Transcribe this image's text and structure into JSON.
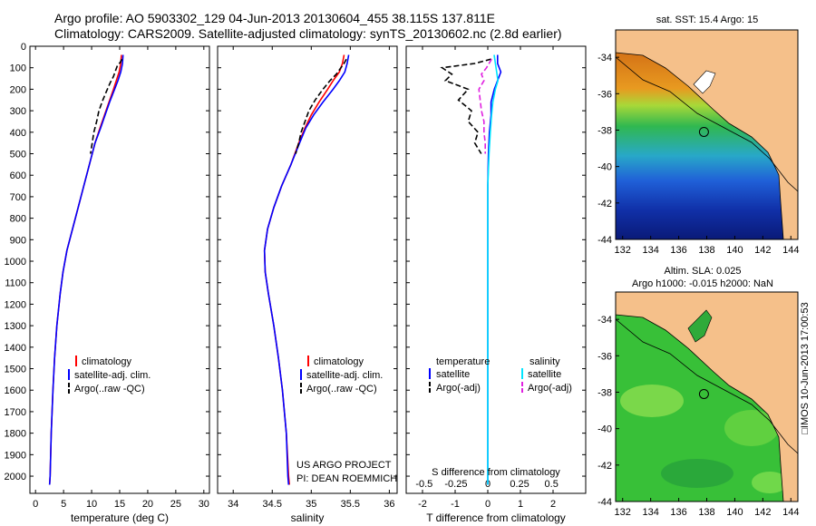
{
  "header": {
    "title_line1": "Argo profile: AO 5903302_129 04-Jun-2013 20130604_455 38.115S 137.811E",
    "title_line2": "Climatology: CARS2009. Satellite-adjusted climatology: synTS_20130602.nc (2.8d earlier)"
  },
  "colors": {
    "climatology": "#ff0000",
    "satellite": "#0000ff",
    "argo": "#000000",
    "salinity_satellite": "#00e5ff",
    "salinity_argo": "#e020e0",
    "land": "#f5c08a"
  },
  "chart_data": [
    {
      "id": "temperature",
      "type": "line",
      "xlabel": "temperature (deg C)",
      "xlim": [
        -1,
        31
      ],
      "xticks": [
        0,
        5,
        10,
        15,
        20,
        25,
        30
      ],
      "xtick_labels": [
        "0",
        "5",
        "10",
        "15",
        "20",
        "25",
        "30"
      ],
      "ylim": [
        2080,
        0
      ],
      "yticks": [
        0,
        100,
        200,
        300,
        400,
        500,
        600,
        700,
        800,
        900,
        1000,
        1100,
        1200,
        1300,
        1400,
        1500,
        1600,
        1700,
        1800,
        1900,
        2000
      ],
      "ytick_labels": [
        "0",
        "100",
        "200",
        "300",
        "400",
        "500",
        "600",
        "700",
        "800",
        "900",
        "1000",
        "1100",
        "1200",
        "1300",
        "1400",
        "1500",
        "1600",
        "1700",
        "1800",
        "1900",
        "2000"
      ],
      "legend": [
        "climatology",
        "satellite-adj. clim.",
        "Argo(..raw -QC)"
      ],
      "series": [
        {
          "name": "climatology",
          "depth": [
            40,
            80,
            120,
            160,
            200,
            260,
            320,
            380,
            450,
            550,
            650,
            750,
            850,
            950,
            1050,
            1150,
            1300,
            1450,
            1600,
            1800,
            2000,
            2040
          ],
          "values": [
            15.3,
            15.2,
            14.9,
            14.4,
            13.9,
            13.1,
            12.3,
            11.5,
            10.6,
            9.6,
            8.6,
            7.6,
            6.6,
            5.6,
            4.9,
            4.4,
            3.8,
            3.4,
            3.1,
            2.8,
            2.6,
            2.5
          ]
        },
        {
          "name": "satellite-adj. clim.",
          "depth": [
            40,
            80,
            120,
            160,
            200,
            260,
            320,
            380,
            450,
            550,
            650,
            750,
            850,
            950,
            1050,
            1150,
            1300,
            1450,
            1600,
            1800,
            2000,
            2040
          ],
          "values": [
            15.6,
            15.5,
            15.2,
            14.7,
            14.1,
            13.2,
            12.4,
            11.6,
            10.6,
            9.6,
            8.6,
            7.6,
            6.6,
            5.6,
            4.9,
            4.4,
            3.8,
            3.4,
            3.1,
            2.8,
            2.6,
            2.5
          ]
        },
        {
          "name": "Argo(..raw -QC)",
          "depth": [
            60,
            75,
            90,
            110,
            140,
            170,
            200,
            250,
            300,
            350,
            400,
            450,
            500
          ],
          "values": [
            15.4,
            15.1,
            14.6,
            14.3,
            13.9,
            13.3,
            12.8,
            12.0,
            11.3,
            10.9,
            10.4,
            10.1,
            9.8
          ]
        }
      ]
    },
    {
      "id": "salinity",
      "type": "line",
      "xlabel": "salinity",
      "xlim": [
        33.8,
        36.1
      ],
      "xticks": [
        34,
        34.5,
        35,
        35.5,
        36
      ],
      "xtick_labels": [
        "34",
        "34.5",
        "35",
        "35.5",
        "36"
      ],
      "ylim": [
        2080,
        0
      ],
      "legend": [
        "climatology",
        "satellite-adj. clim.",
        "Argo(..raw -QC)"
      ],
      "annotation": [
        "US ARGO PROJECT",
        "PI: DEAN ROEMMICH"
      ],
      "series": [
        {
          "name": "climatology",
          "depth": [
            40,
            80,
            120,
            160,
            200,
            260,
            320,
            380,
            450,
            550,
            650,
            750,
            850,
            950,
            1050,
            1150,
            1300,
            1450,
            1600,
            1800,
            2000,
            2040
          ],
          "values": [
            35.42,
            35.4,
            35.36,
            35.28,
            35.21,
            35.1,
            35.0,
            34.92,
            34.84,
            34.74,
            34.62,
            34.52,
            34.44,
            34.4,
            34.41,
            34.45,
            34.52,
            34.58,
            34.63,
            34.68,
            34.71,
            34.72
          ]
        },
        {
          "name": "satellite-adj. clim.",
          "depth": [
            40,
            80,
            120,
            160,
            200,
            260,
            320,
            380,
            450,
            550,
            650,
            750,
            850,
            950,
            1050,
            1150,
            1300,
            1450,
            1600,
            1800,
            2000,
            2040
          ],
          "values": [
            35.48,
            35.46,
            35.43,
            35.36,
            35.28,
            35.15,
            35.03,
            34.93,
            34.85,
            34.74,
            34.62,
            34.52,
            34.44,
            34.4,
            34.41,
            34.45,
            34.52,
            34.58,
            34.63,
            34.68,
            34.7,
            34.71
          ]
        },
        {
          "name": "Argo(..raw -QC)",
          "depth": [
            60,
            80,
            100,
            130,
            160,
            200,
            250,
            300,
            350,
            400,
            450,
            500
          ],
          "values": [
            35.45,
            35.42,
            35.38,
            35.32,
            35.24,
            35.15,
            35.05,
            34.97,
            34.92,
            34.87,
            34.84,
            34.8
          ]
        }
      ]
    },
    {
      "id": "difference",
      "type": "line",
      "xlabel": "T difference from climatology",
      "xlabel_top": "S difference from climatology",
      "xlim": [
        -2.5,
        3
      ],
      "xticks": [
        -2,
        -1,
        0,
        1,
        2
      ],
      "xtick_labels": [
        "-2",
        "-1",
        "0",
        "1",
        "2"
      ],
      "sticks": [
        -0.5,
        -0.25,
        0,
        0.25,
        0.5
      ],
      "stick_labels": [
        "-0.5",
        "-0.25",
        "0",
        "0.25",
        "0.5"
      ],
      "ylim": [
        2080,
        0
      ],
      "legend": {
        "temperature_header": "temperature",
        "salinity_header": "salinity",
        "t_satellite": "satellite",
        "t_argo": "Argo(-adj)",
        "s_satellite": "satellite",
        "s_argo": "Argo(-adj)"
      },
      "series": [
        {
          "name": "temperature satellite",
          "depth": [
            40,
            80,
            120,
            160,
            200,
            260,
            320,
            400,
            500,
            650,
            800,
            1000,
            1200,
            2040
          ],
          "values": [
            0.3,
            0.3,
            0.4,
            0.3,
            0.2,
            0.1,
            0.1,
            0.05,
            0.02,
            0,
            0,
            0,
            0,
            0
          ]
        },
        {
          "name": "temperature Argo(-adj)",
          "depth": [
            60,
            80,
            100,
            130,
            160,
            200,
            250,
            300,
            350,
            400,
            450,
            500
          ],
          "values": [
            0.1,
            -0.4,
            -1.4,
            -1.1,
            -1.3,
            -0.6,
            -0.9,
            -0.5,
            -0.6,
            -0.3,
            -0.4,
            -0.2
          ]
        },
        {
          "name": "salinity satellite",
          "depth": [
            40,
            80,
            120,
            160,
            200,
            260,
            320,
            400,
            500,
            650,
            800,
            1000,
            1200,
            2040
          ],
          "values": [
            0.05,
            0.06,
            0.07,
            0.08,
            0.06,
            0.04,
            0.03,
            0.02,
            0.01,
            0,
            0,
            0,
            0,
            0
          ]
        },
        {
          "name": "salinity Argo(-adj)",
          "depth": [
            60,
            80,
            100,
            130,
            160,
            200,
            250,
            300,
            350,
            400,
            450,
            500
          ],
          "values": [
            0.03,
            0.01,
            -0.01,
            -0.05,
            -0.03,
            -0.07,
            -0.06,
            -0.05,
            -0.03,
            -0.03,
            -0.02,
            -0.02
          ]
        }
      ]
    },
    {
      "id": "sst_map",
      "type": "heatmap",
      "title": "sat. SST: 15.4  Argo: 15",
      "xlim": [
        131.5,
        144.5
      ],
      "ylim": [
        -44,
        -32.5
      ],
      "xticks": [
        132,
        134,
        136,
        138,
        140,
        142,
        144
      ],
      "xtick_labels": [
        "132",
        "134",
        "136",
        "138",
        "140",
        "142",
        "144"
      ],
      "yticks": [
        -34,
        -36,
        -38,
        -40,
        -42,
        -44
      ],
      "ytick_labels": [
        "-34",
        "-36",
        "-38",
        "-40",
        "-42",
        "-44"
      ],
      "marker": {
        "lon": 137.8,
        "lat": -38.1
      }
    },
    {
      "id": "sla_map",
      "type": "heatmap",
      "title_line1": "Altim. SLA: 0.025",
      "title_line2": "Argo h1000: -0.015 h2000: NaN",
      "xlim": [
        131.5,
        144.5
      ],
      "ylim": [
        -44,
        -32.5
      ],
      "xticks": [
        132,
        134,
        136,
        138,
        140,
        142,
        144
      ],
      "xtick_labels": [
        "132",
        "134",
        "136",
        "138",
        "140",
        "142",
        "144"
      ],
      "yticks": [
        -34,
        -36,
        -38,
        -40,
        -42,
        -44
      ],
      "ytick_labels": [
        "-34",
        "-36",
        "-38",
        "-40",
        "-42",
        "-44"
      ],
      "marker": {
        "lon": 137.8,
        "lat": -38.1
      }
    }
  ],
  "footer": {
    "watermark": "□IMOS 10-Jun-2013 17:00:53"
  }
}
